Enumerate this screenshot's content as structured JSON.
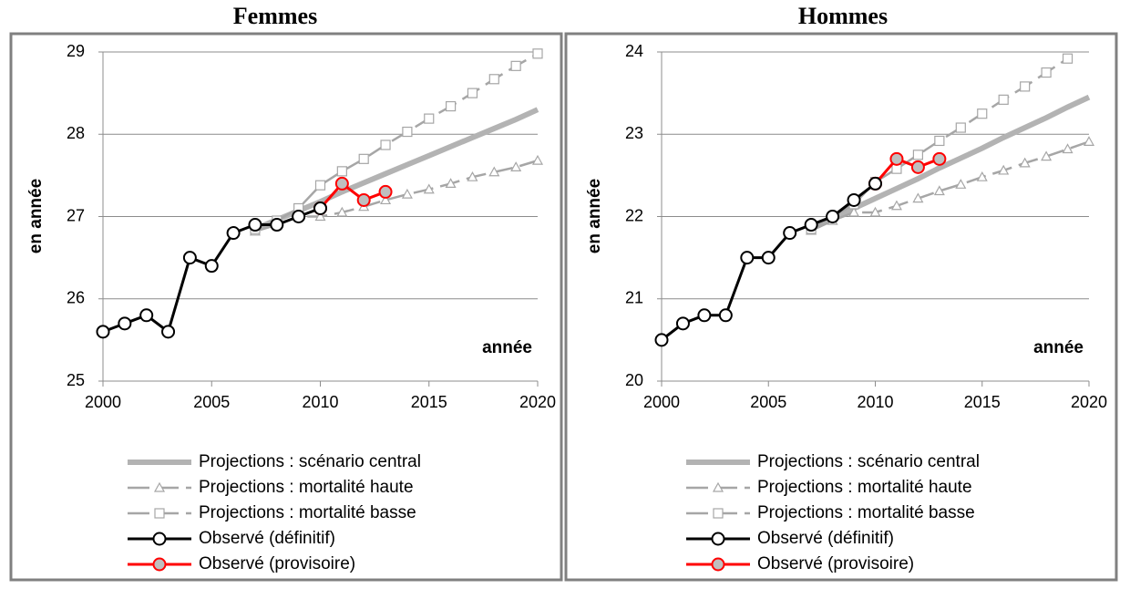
{
  "chart_data": [
    {
      "type": "line",
      "title": "Femmes",
      "ylabel": "en année",
      "xlabel": "année",
      "xlim": [
        2000,
        2020
      ],
      "xticks": [
        2000,
        2005,
        2010,
        2015,
        2020
      ],
      "ylim": [
        25,
        29
      ],
      "yticks": [
        25,
        26,
        27,
        28,
        29
      ],
      "grid": true,
      "series": [
        {
          "name": "Projections : scénario central",
          "color": "#b3b3b3",
          "marker": "none",
          "x": [
            2007,
            2008,
            2009,
            2010,
            2011,
            2012,
            2013,
            2014,
            2015,
            2016,
            2017,
            2018,
            2019,
            2020
          ],
          "values": [
            26.85,
            26.96,
            27.07,
            27.18,
            27.3,
            27.41,
            27.52,
            27.63,
            27.74,
            27.85,
            27.96,
            28.07,
            28.18,
            28.3
          ]
        },
        {
          "name": "Projections : mortalité haute",
          "color": "#a6a6a6",
          "marker": "triangle",
          "x": [
            2007,
            2008,
            2009,
            2010,
            2011,
            2012,
            2013,
            2014,
            2015,
            2016,
            2017,
            2018,
            2019,
            2020
          ],
          "values": [
            26.82,
            26.9,
            27.0,
            27.0,
            27.05,
            27.12,
            27.2,
            27.27,
            27.33,
            27.4,
            27.48,
            27.54,
            27.6,
            27.68
          ]
        },
        {
          "name": "Projections : mortalité basse",
          "color": "#a6a6a6",
          "marker": "square",
          "x": [
            2007,
            2008,
            2009,
            2010,
            2011,
            2012,
            2013,
            2014,
            2015,
            2016,
            2017,
            2018,
            2019,
            2020
          ],
          "values": [
            26.85,
            26.95,
            27.1,
            27.38,
            27.55,
            27.7,
            27.87,
            28.03,
            28.19,
            28.34,
            28.5,
            28.67,
            28.83,
            28.98
          ]
        },
        {
          "name": "Observé (définitif)",
          "color": "#000000",
          "marker": "circle",
          "marker_color": "#ffffff",
          "x": [
            2000,
            2001,
            2002,
            2003,
            2004,
            2005,
            2006,
            2007,
            2008,
            2009,
            2010
          ],
          "values": [
            25.6,
            25.7,
            25.8,
            25.6,
            26.5,
            26.4,
            26.8,
            26.9,
            26.9,
            27.0,
            27.1
          ]
        },
        {
          "name": "Observé (provisoire)",
          "color": "#ff0000",
          "marker": "circle",
          "marker_color": "#bfbfbf",
          "x": [
            2010,
            2011,
            2012,
            2013
          ],
          "values": [
            27.1,
            27.4,
            27.2,
            27.3
          ]
        }
      ]
    },
    {
      "type": "line",
      "title": "Hommes",
      "ylabel": "en année",
      "xlabel": "année",
      "xlim": [
        2000,
        2020
      ],
      "xticks": [
        2000,
        2005,
        2010,
        2015,
        2020
      ],
      "ylim": [
        20,
        24
      ],
      "yticks": [
        20,
        21,
        22,
        23,
        24
      ],
      "grid": true,
      "series": [
        {
          "name": "Projections : scénario central",
          "color": "#b3b3b3",
          "marker": "none",
          "x": [
            2007,
            2008,
            2009,
            2010,
            2011,
            2012,
            2013,
            2014,
            2015,
            2016,
            2017,
            2018,
            2019,
            2020
          ],
          "values": [
            21.85,
            21.97,
            22.1,
            22.22,
            22.34,
            22.46,
            22.59,
            22.71,
            22.83,
            22.96,
            23.08,
            23.2,
            23.33,
            23.45
          ]
        },
        {
          "name": "Projections : mortalité haute",
          "color": "#a6a6a6",
          "marker": "triangle",
          "x": [
            2007,
            2008,
            2009,
            2010,
            2011,
            2012,
            2013,
            2014,
            2015,
            2016,
            2017,
            2018,
            2019,
            2020
          ],
          "values": [
            21.83,
            21.95,
            22.05,
            22.05,
            22.13,
            22.22,
            22.31,
            22.39,
            22.48,
            22.56,
            22.65,
            22.73,
            22.82,
            22.91
          ]
        },
        {
          "name": "Projections : mortalité basse",
          "color": "#a6a6a6",
          "marker": "square",
          "x": [
            2007,
            2008,
            2009,
            2010,
            2011,
            2012,
            2013,
            2014,
            2015,
            2016,
            2017,
            2018,
            2019
          ],
          "values": [
            21.85,
            22.0,
            22.15,
            22.42,
            22.58,
            22.75,
            22.92,
            23.08,
            23.25,
            23.42,
            23.58,
            23.75,
            23.92
          ]
        },
        {
          "name": "Observé (définitif)",
          "color": "#000000",
          "marker": "circle",
          "marker_color": "#ffffff",
          "x": [
            2000,
            2001,
            2002,
            2003,
            2004,
            2005,
            2006,
            2007,
            2008,
            2009,
            2010
          ],
          "values": [
            20.5,
            20.7,
            20.8,
            20.8,
            21.5,
            21.5,
            21.8,
            21.9,
            22.0,
            22.2,
            22.4
          ]
        },
        {
          "name": "Observé (provisoire)",
          "color": "#ff0000",
          "marker": "circle",
          "marker_color": "#bfbfbf",
          "x": [
            2010,
            2011,
            2012,
            2013
          ],
          "values": [
            22.4,
            22.7,
            22.6,
            22.7
          ]
        }
      ]
    }
  ]
}
